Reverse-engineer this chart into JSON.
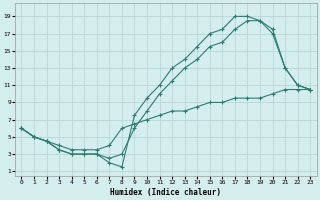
{
  "xlabel": "Humidex (Indice chaleur)",
  "bg_color": "#d4eeed",
  "grid_color": "#b8d8d4",
  "line_color": "#2d7d6e",
  "xlim": [
    -0.5,
    23.5
  ],
  "ylim": [
    0.5,
    20.5
  ],
  "xticks": [
    0,
    1,
    2,
    3,
    4,
    5,
    6,
    7,
    8,
    9,
    10,
    11,
    12,
    13,
    14,
    15,
    16,
    17,
    18,
    19,
    20,
    21,
    22,
    23
  ],
  "yticks": [
    1,
    3,
    5,
    7,
    9,
    11,
    13,
    15,
    17,
    19
  ],
  "line1_x": [
    0,
    1,
    2,
    3,
    4,
    5,
    6,
    7,
    8,
    9,
    10,
    11,
    12,
    13,
    14,
    15,
    16,
    17,
    18,
    19,
    20,
    21,
    22,
    23
  ],
  "line1_y": [
    6,
    5,
    4.5,
    3.5,
    3,
    3,
    3,
    2,
    1.5,
    7.5,
    9.5,
    11,
    13,
    14,
    15.5,
    17,
    17.5,
    19,
    19,
    18.5,
    17.5,
    13,
    11,
    10.5
  ],
  "line2_x": [
    0,
    1,
    2,
    3,
    4,
    5,
    6,
    7,
    8,
    9,
    10,
    11,
    12,
    13,
    14,
    15,
    16,
    17,
    18,
    19,
    20,
    21,
    22,
    23
  ],
  "line2_y": [
    6,
    5,
    4.5,
    3.5,
    3,
    3,
    3,
    2.5,
    3,
    6,
    8,
    10,
    11.5,
    13,
    14,
    15.5,
    16,
    17.5,
    18.5,
    18.5,
    17,
    13,
    11,
    10.5
  ],
  "line3_x": [
    0,
    1,
    2,
    3,
    4,
    5,
    6,
    7,
    8,
    9,
    10,
    11,
    12,
    13,
    14,
    15,
    16,
    17,
    18,
    19,
    20,
    21,
    22,
    23
  ],
  "line3_y": [
    6,
    5,
    4.5,
    4,
    3.5,
    3.5,
    3.5,
    4,
    6,
    6.5,
    7,
    7.5,
    8,
    8,
    8.5,
    9,
    9,
    9.5,
    9.5,
    9.5,
    10,
    10.5,
    10.5,
    10.5
  ]
}
